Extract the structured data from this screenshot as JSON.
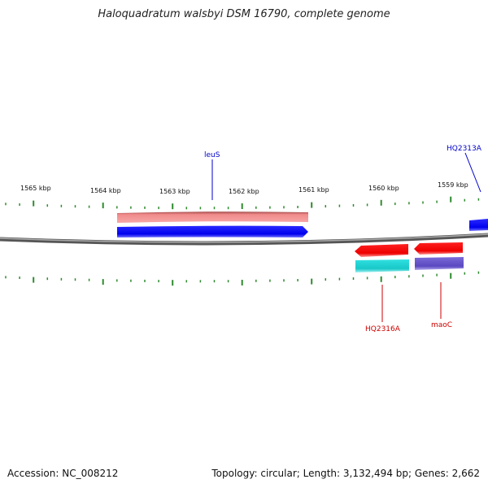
{
  "title": "Haloquadratum walsbyi DSM 16790, complete genome",
  "footer": {
    "accession": "Accession: NC_008212",
    "summary": "Topology: circular; Length: 3,132,494 bp; Genes: 2,662"
  },
  "colors": {
    "backbone": "#8a8a8a",
    "tick": "#2e8b2e",
    "forward_gene": "#0000ff",
    "forward_bar": "#f08080",
    "reverse_gene": "#ff0000",
    "reverse_cyan": "#20d0d0",
    "reverse_purple": "#7060cc",
    "label_blue": "#0000cc",
    "label_red": "#cc0000"
  },
  "scale": {
    "labels": [
      "1565 kbp",
      "1564 kbp",
      "1563 kbp",
      "1562 kbp",
      "1561 kbp",
      "1560 kbp",
      "1559 kbp"
    ]
  },
  "genes": {
    "leuS": "leuS",
    "HQ2313A": "HQ2313A",
    "HQ2316A": "HQ2316A",
    "maoC": "maoC"
  }
}
